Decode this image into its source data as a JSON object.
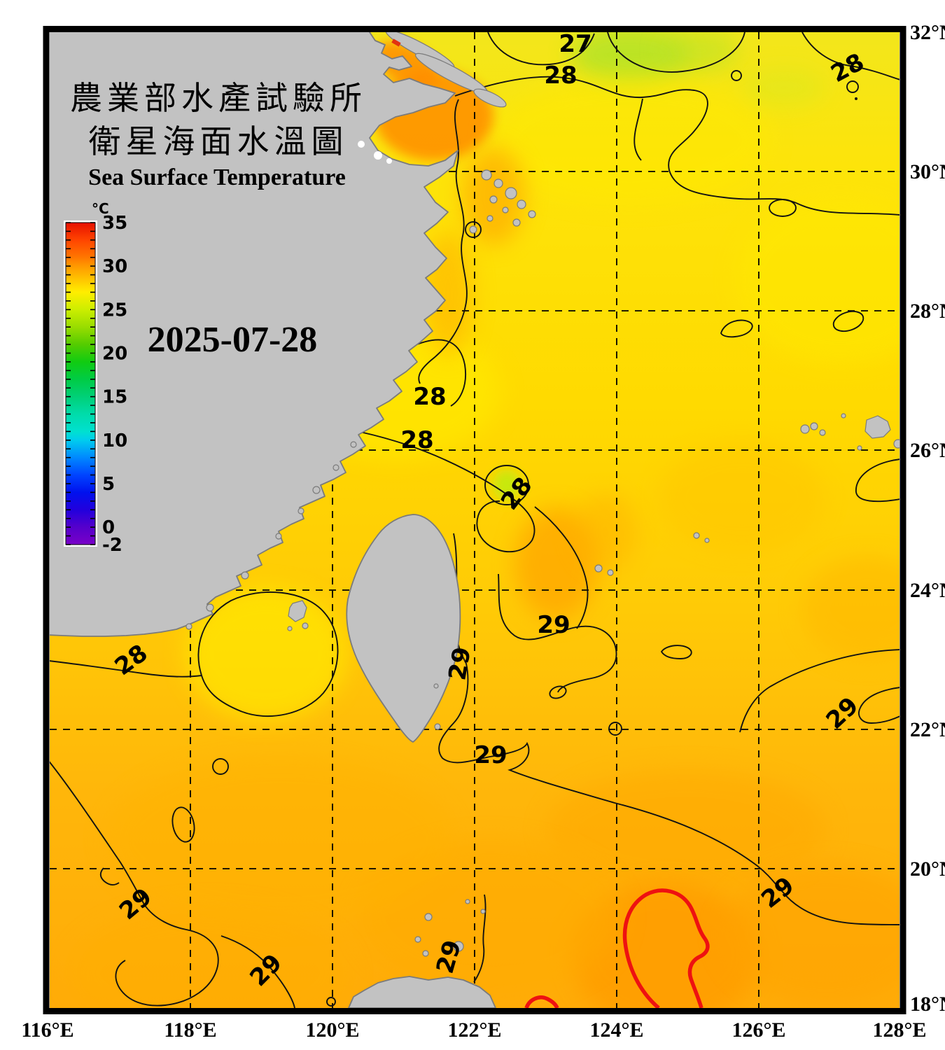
{
  "map": {
    "title_line1": "農業部水產試驗所",
    "title_line2": "衛星海面水溫圖",
    "title_en": "Sea Surface Temperature",
    "date": "2025-07-28"
  },
  "colorbar": {
    "unit": "°C",
    "min": -2,
    "max": 35,
    "ticks": [
      "35",
      "30",
      "25",
      "20",
      "15",
      "10",
      "5",
      "0",
      "-2"
    ]
  },
  "axes": {
    "lon": [
      "116°E",
      "118°E",
      "120°E",
      "122°E",
      "124°E",
      "126°E",
      "128°E"
    ],
    "lat": [
      "32°N",
      "30°N",
      "28°N",
      "26°N",
      "24°N",
      "22°N",
      "20°N",
      "18°N"
    ]
  },
  "contour_labels": [
    "27",
    "28",
    "28",
    "28",
    "28",
    "28",
    "28",
    "29",
    "29",
    "29",
    "29",
    "29",
    "29",
    "29",
    "29"
  ],
  "contours": {
    "black_levels": [
      "27",
      "28",
      "29"
    ],
    "red_level": "30"
  },
  "colors": {
    "land": "#c2c2c2",
    "contour_black": "#121212",
    "contour_red": "#ee1111",
    "sea_yellow": "#ffdf00",
    "sea_orange": "#ffaa00",
    "green_patch": "#bfe41c"
  }
}
